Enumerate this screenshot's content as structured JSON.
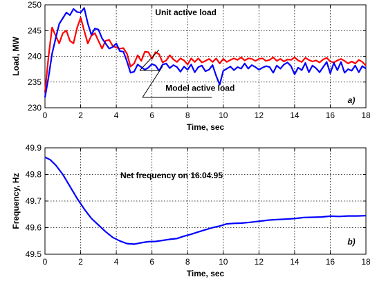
{
  "chart_data": [
    {
      "type": "line",
      "panel_label": "a)",
      "xlabel": "Time, sec",
      "ylabel": "Load, MW",
      "xlim": [
        0,
        18
      ],
      "ylim": [
        230,
        250
      ],
      "xticks": [
        0,
        2,
        4,
        6,
        8,
        10,
        12,
        14,
        16,
        18
      ],
      "yticks": [
        230,
        235,
        240,
        245,
        250
      ],
      "grid": true,
      "series": [
        {
          "name": "Unit active load",
          "color": "#ff0000",
          "x": [
            0,
            0.2,
            0.4,
            0.6,
            0.8,
            1.0,
            1.2,
            1.4,
            1.6,
            1.8,
            2.0,
            2.2,
            2.4,
            2.6,
            2.8,
            3.0,
            3.2,
            3.4,
            3.6,
            3.8,
            4.0,
            4.2,
            4.4,
            4.6,
            4.8,
            5.0,
            5.2,
            5.4,
            5.6,
            5.8,
            6.0,
            6.2,
            6.4,
            6.6,
            6.8,
            7.0,
            7.2,
            7.4,
            7.6,
            7.8,
            8.0,
            8.2,
            8.4,
            8.6,
            8.8,
            9.0,
            9.2,
            9.4,
            9.6,
            9.8,
            10.0,
            10.2,
            10.4,
            10.6,
            10.8,
            11.0,
            11.2,
            11.4,
            11.6,
            11.8,
            12.0,
            12.2,
            12.4,
            12.6,
            12.8,
            13.0,
            13.2,
            13.4,
            13.6,
            13.8,
            14.0,
            14.2,
            14.4,
            14.6,
            14.8,
            15.0,
            15.2,
            15.4,
            15.6,
            15.8,
            16.0,
            16.2,
            16.4,
            16.6,
            16.8,
            17.0,
            17.2,
            17.4,
            17.6,
            17.8,
            18.0
          ],
          "values": [
            233,
            240,
            245.6,
            244,
            242.5,
            244.5,
            245,
            243,
            242.5,
            245.5,
            247.5,
            245,
            242.5,
            244,
            244.5,
            243,
            241.5,
            243,
            243.2,
            242,
            241.7,
            241.5,
            241.6,
            240.5,
            238,
            238.6,
            240.2,
            239.1,
            240.9,
            240.8,
            239.5,
            240.8,
            240.4,
            238.8,
            239.2,
            240.2,
            239.4,
            238.9,
            239.6,
            239.2,
            238.4,
            239.6,
            238.9,
            239.6,
            238.8,
            239.1,
            239.5,
            238.9,
            239.6,
            238.6,
            239.5,
            238.9,
            239.3,
            239.6,
            239.3,
            239.8,
            239.2,
            239.6,
            239.5,
            239.1,
            239.5,
            239.6,
            239.1,
            239.3,
            239.8,
            239.1,
            239.5,
            239,
            239.4,
            239.3,
            239.8,
            239.2,
            238.9,
            239.7,
            239.3,
            239,
            239.2,
            238.8,
            239.4,
            239.7,
            239,
            238.8,
            239.2,
            239.5,
            239.1,
            238.6,
            239,
            238.6,
            239.3,
            238.9,
            238.2
          ]
        },
        {
          "name": "Model active load",
          "color": "#0000ff",
          "x": [
            0,
            0.2,
            0.4,
            0.6,
            0.8,
            1.0,
            1.2,
            1.4,
            1.6,
            1.8,
            2.0,
            2.2,
            2.4,
            2.6,
            2.8,
            3.0,
            3.2,
            3.4,
            3.6,
            3.8,
            4.0,
            4.2,
            4.4,
            4.6,
            4.8,
            5.0,
            5.2,
            5.4,
            5.6,
            5.8,
            6.0,
            6.2,
            6.4,
            6.6,
            6.8,
            7.0,
            7.2,
            7.4,
            7.6,
            7.8,
            8.0,
            8.2,
            8.4,
            8.6,
            8.8,
            9.0,
            9.2,
            9.4,
            9.6,
            9.8,
            10.0,
            10.2,
            10.4,
            10.6,
            10.8,
            11.0,
            11.2,
            11.4,
            11.6,
            11.8,
            12.0,
            12.2,
            12.4,
            12.6,
            12.8,
            13.0,
            13.2,
            13.4,
            13.6,
            13.8,
            14.0,
            14.2,
            14.4,
            14.6,
            14.8,
            15.0,
            15.2,
            15.4,
            15.6,
            15.8,
            16.0,
            16.2,
            16.4,
            16.6,
            16.8,
            17.0,
            17.2,
            17.4,
            17.6,
            17.8,
            18.0
          ],
          "values": [
            232,
            236,
            240.5,
            243.5,
            246.3,
            247.4,
            248.5,
            248,
            249.2,
            248.6,
            248.5,
            249.4,
            246.4,
            244.2,
            245.4,
            245.2,
            243.5,
            242.5,
            241.5,
            241.8,
            242.5,
            241,
            240.9,
            239,
            236.8,
            237,
            238.4,
            237.9,
            237.4,
            237.8,
            238.5,
            238.2,
            237.2,
            238.4,
            238.6,
            237.7,
            238.3,
            237.9,
            237,
            238,
            237.4,
            238.4,
            236.9,
            237.9,
            238.2,
            237.1,
            237.4,
            238.3,
            236.2,
            234.5,
            237.2,
            237.6,
            238,
            237.3,
            237.9,
            237.6,
            238.6,
            237.6,
            238.3,
            237.9,
            237.4,
            237.8,
            238.1,
            237.9,
            236.8,
            238.2,
            237.6,
            238.4,
            238.8,
            238.1,
            236.5,
            237.8,
            237.3,
            238.7,
            236.9,
            238.2,
            237.7,
            236.9,
            237.9,
            238.9,
            236.7,
            238.7,
            237.3,
            238.9,
            236.8,
            237.5,
            237.2,
            238.2,
            236.9,
            238.1,
            237.6
          ]
        }
      ],
      "annotations": [
        {
          "text": "Unit active load",
          "x": 7.9,
          "y": 248
        },
        {
          "text": "Model active load",
          "x": 8.7,
          "y": 233.3
        }
      ]
    },
    {
      "type": "line",
      "panel_label": "b)",
      "xlabel": "Time, sec",
      "ylabel": "Frequency, Hz",
      "xlim": [
        0,
        18
      ],
      "ylim": [
        49.5,
        49.9
      ],
      "xticks": [
        0,
        2,
        4,
        6,
        8,
        10,
        12,
        14,
        16,
        18
      ],
      "yticks": [
        49.5,
        49.6,
        49.7,
        49.8,
        49.9
      ],
      "ytick_labels": [
        "49.5",
        "49.6",
        "49.7",
        "49.8",
        "49.9"
      ],
      "grid": true,
      "annotation": "Net frequency on 16.04.95",
      "series": [
        {
          "color": "#0000ff",
          "x": [
            0,
            0.3,
            0.6,
            1.0,
            1.4,
            1.8,
            2.2,
            2.6,
            3.0,
            3.4,
            3.8,
            4.2,
            4.6,
            5.0,
            5.4,
            5.8,
            6.2,
            6.6,
            7.0,
            7.4,
            7.8,
            8.2,
            8.6,
            9.0,
            9.4,
            9.8,
            10.2,
            10.6,
            11.0,
            11.5,
            12.0,
            12.5,
            13.0,
            13.5,
            14.0,
            14.5,
            15.0,
            15.5,
            16.0,
            16.5,
            17.0,
            17.5,
            18.0
          ],
          "values": [
            49.865,
            49.855,
            49.835,
            49.8,
            49.755,
            49.71,
            49.67,
            49.635,
            49.61,
            49.585,
            49.563,
            49.55,
            49.54,
            49.538,
            49.543,
            49.547,
            49.548,
            49.552,
            49.556,
            49.559,
            49.568,
            49.575,
            49.584,
            49.592,
            49.6,
            49.606,
            49.614,
            49.616,
            49.617,
            49.62,
            49.624,
            49.628,
            49.63,
            49.632,
            49.634,
            49.638,
            49.639,
            49.64,
            49.643,
            49.642,
            49.644,
            49.644,
            49.645
          ]
        }
      ]
    }
  ]
}
